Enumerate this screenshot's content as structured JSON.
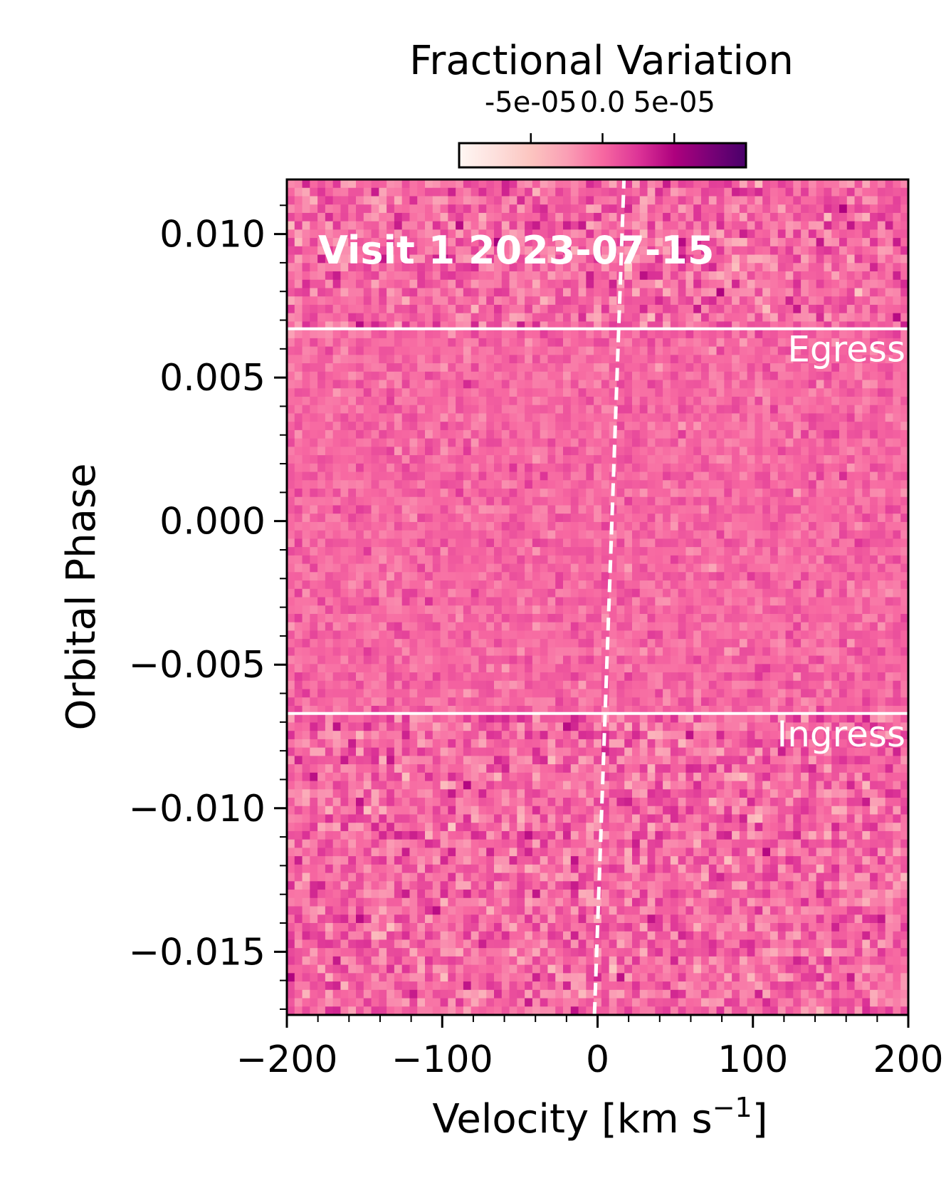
{
  "chart_data": {
    "type": "heatmap",
    "title": "Visit 1 2023-07-15",
    "xlabel": "Velocity [km s",
    "xlabel_sup": "−1",
    "xlabel_close": "]",
    "ylabel": "Orbital Phase",
    "xlim": [
      -200,
      200
    ],
    "ylim": [
      -0.0172,
      0.0119
    ],
    "x_ticks": [
      -200,
      -100,
      0,
      100,
      200
    ],
    "x_tick_labels": [
      "−200",
      "−100",
      "0",
      "100",
      "200"
    ],
    "y_ticks": [
      0.01,
      0.005,
      0.0,
      -0.005,
      -0.01,
      -0.015
    ],
    "y_tick_labels": [
      "0.010",
      "0.005",
      "0.000",
      "−0.005",
      "−0.010",
      "−0.015"
    ],
    "colorbar": {
      "label": "Fractional Variation",
      "range": [
        -0.0001,
        0.0001
      ],
      "ticks": [
        -5e-05,
        0.0,
        5e-05
      ],
      "tick_labels": [
        "-5e-05",
        "0.0",
        "5e-05"
      ],
      "colormap": "RdPu",
      "colors": [
        "#fff7f3",
        "#fde0dd",
        "#fcc5c0",
        "#fa9fb5",
        "#f768a1",
        "#dd3497",
        "#ae017e",
        "#7a0177",
        "#49006a"
      ]
    },
    "annotations": [
      {
        "text": "Egress",
        "phase": 0.0067,
        "color": "#ffffff"
      },
      {
        "text": "Ingress",
        "phase": -0.0067,
        "color": "#ffffff"
      }
    ],
    "planet_trail": {
      "style": "dashed",
      "color": "#ffffff",
      "points": [
        {
          "phase": -0.0172,
          "velocity": -2
        },
        {
          "phase": 0.0119,
          "velocity": 17
        }
      ]
    },
    "grid": {
      "velocity_bins": 81,
      "phase_rows": 100,
      "out_of_transit_std": 2.2e-05,
      "in_transit_std": 1.2e-05,
      "mean": 0.0
    }
  }
}
